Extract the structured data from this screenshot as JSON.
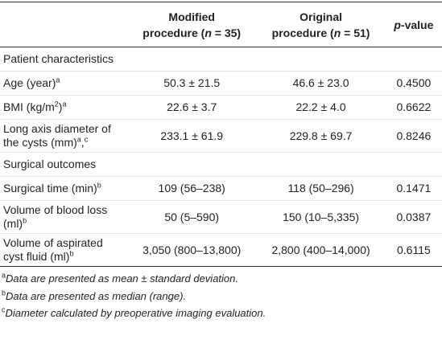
{
  "table": {
    "header": [
      [],
      [
        [
          {
            "text": "Modified"
          }
        ],
        [
          {
            "text": "procedure ("
          },
          {
            "text": "n",
            "italic": true
          },
          {
            "text": " = 35)"
          }
        ]
      ],
      [
        [
          {
            "text": "Original"
          }
        ],
        [
          {
            "text": "procedure ("
          },
          {
            "text": "n",
            "italic": true
          },
          {
            "text": " = 51)"
          }
        ]
      ],
      [
        [
          {
            "text": "p",
            "italic": true
          },
          {
            "text": "-value"
          }
        ]
      ]
    ],
    "rows": [
      {
        "section": "Patient characteristics"
      },
      {
        "cells": [
          [
            {
              "text": "Age (year)"
            },
            {
              "text": "a",
              "sup": true
            }
          ],
          [
            {
              "text": "50.3 ± 21.5"
            }
          ],
          [
            {
              "text": "46.6 ± 23.0"
            }
          ],
          [
            {
              "text": "0.4500"
            }
          ]
        ]
      },
      {
        "cells": [
          [
            {
              "text": "BMI (kg/m"
            },
            {
              "text": "2",
              "sup": true
            },
            {
              "text": ")"
            },
            {
              "text": "a",
              "sup": true
            }
          ],
          [
            {
              "text": "22.6 ± 3.7"
            }
          ],
          [
            {
              "text": "22.2 ± 4.0"
            }
          ],
          [
            {
              "text": "0.6622"
            }
          ]
        ]
      },
      {
        "cells": [
          [
            {
              "text": "Long axis diameter of the cysts (mm)"
            },
            {
              "text": "a",
              "sup": true
            },
            {
              "text": ","
            },
            {
              "text": "c",
              "sup": true
            }
          ],
          [
            {
              "text": "233.1 ± 61.9"
            }
          ],
          [
            {
              "text": "229.8 ± 69.7"
            }
          ],
          [
            {
              "text": "0.8246"
            }
          ]
        ]
      },
      {
        "section": "Surgical outcomes"
      },
      {
        "cells": [
          [
            {
              "text": "Surgical time (min)"
            },
            {
              "text": "b",
              "sup": true
            }
          ],
          [
            {
              "text": "109 (56–238)"
            }
          ],
          [
            {
              "text": "118 (50–296)"
            }
          ],
          [
            {
              "text": "0.1471"
            }
          ]
        ]
      },
      {
        "cells": [
          [
            {
              "text": "Volume of blood loss (ml)"
            },
            {
              "text": "b",
              "sup": true
            }
          ],
          [
            {
              "text": "50 (5–590)"
            }
          ],
          [
            {
              "text": "150 (10–5,335)"
            }
          ],
          [
            {
              "text": "0.0387"
            }
          ]
        ]
      },
      {
        "cells": [
          [
            {
              "text": "Volume of aspirated cyst fluid (ml)"
            },
            {
              "text": "b",
              "sup": true
            }
          ],
          [
            {
              "text": "3,050 (800–13,800)"
            }
          ],
          [
            {
              "text": "2,800 (400–14,000)"
            }
          ],
          [
            {
              "text": "0.6115"
            }
          ]
        ]
      }
    ]
  },
  "footnotes": [
    [
      {
        "text": "a",
        "sup": true
      },
      {
        "text": "Data are presented as mean ± standard deviation.",
        "italic": true
      }
    ],
    [
      {
        "text": "b",
        "sup": true
      },
      {
        "text": "Data are presented as median (range).",
        "italic": true
      }
    ],
    [
      {
        "text": "c",
        "sup": true
      },
      {
        "text": "Diameter calculated by preoperative imaging evaluation.",
        "italic": true
      }
    ]
  ]
}
